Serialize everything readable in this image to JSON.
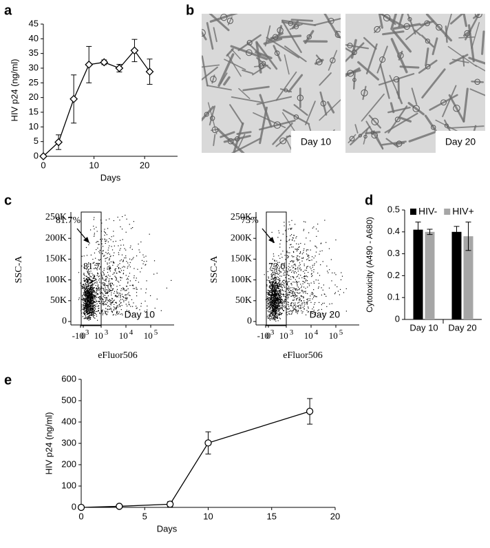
{
  "panel_labels": [
    "a",
    "b",
    "c",
    "d",
    "e"
  ],
  "chart_data": [
    {
      "type": "line",
      "x": [
        0,
        3,
        6,
        9,
        12,
        15,
        18,
        21
      ],
      "values": [
        0,
        4.8,
        19.5,
        31.2,
        32,
        30,
        36,
        28.8
      ],
      "errors": [
        0,
        2.5,
        8.2,
        6.2,
        0.8,
        1.3,
        3.8,
        4.3
      ],
      "marker": "diamond",
      "color": "#000000",
      "xlabel": "Days",
      "ylabel": "HIV p24 (ng/ml)",
      "xlim": [
        0,
        26.5
      ],
      "xticks": [
        0,
        10,
        20
      ],
      "ylim": [
        0,
        45
      ],
      "yticks": [
        0,
        5,
        10,
        15,
        20,
        25,
        30,
        35,
        40,
        45
      ]
    },
    {
      "type": "bar",
      "categories": [
        "Day 10",
        "Day 20"
      ],
      "series": [
        {
          "name": "HIV-",
          "color": "#000000",
          "values": [
            0.41,
            0.4
          ],
          "errors": [
            0.035,
            0.025
          ]
        },
        {
          "name": "HIV+",
          "color": "#a6a6a6",
          "values": [
            0.4,
            0.38
          ],
          "errors": [
            0.012,
            0.065
          ]
        }
      ],
      "ylabel": "Cytotoxicity  (A490 - A680)",
      "ylim": [
        0,
        0.5
      ],
      "yticks": [
        0,
        0.1,
        0.2,
        0.3,
        0.4,
        0.5
      ],
      "legend": "top"
    },
    {
      "type": "line",
      "x": [
        0,
        3,
        7,
        10,
        18
      ],
      "values": [
        0,
        5,
        15,
        302,
        450
      ],
      "errors": [
        0,
        3,
        12,
        52,
        60
      ],
      "marker": "circle",
      "color": "#000000",
      "xlabel": "Days",
      "ylabel": "HIV p24 (ng/ml)",
      "xlim": [
        0,
        20
      ],
      "xticks": [
        0,
        5,
        10,
        15,
        20
      ],
      "ylim": [
        0,
        600
      ],
      "yticks": [
        0,
        100,
        200,
        300,
        400,
        500,
        600
      ]
    }
  ],
  "micrographs": [
    {
      "label": "Day 10"
    },
    {
      "label": "Day 20"
    }
  ],
  "flow": {
    "ylabel": "SSC-A",
    "xlabel": "eFluor506",
    "yticks": [
      "250K",
      "200K",
      "150K",
      "100K",
      "50K",
      "0"
    ],
    "xticks": [
      {
        "base": "-10",
        "exp": "3"
      },
      {
        "base": "0"
      },
      {
        "base": "10",
        "exp": "3"
      },
      {
        "base": "10",
        "exp": "4"
      },
      {
        "base": "10",
        "exp": "5"
      }
    ],
    "plots": [
      {
        "percent": "81.7%",
        "gate": "81.7",
        "day": "Day 10"
      },
      {
        "percent": "73%",
        "gate": "73.0",
        "day": "Day 20"
      }
    ]
  }
}
